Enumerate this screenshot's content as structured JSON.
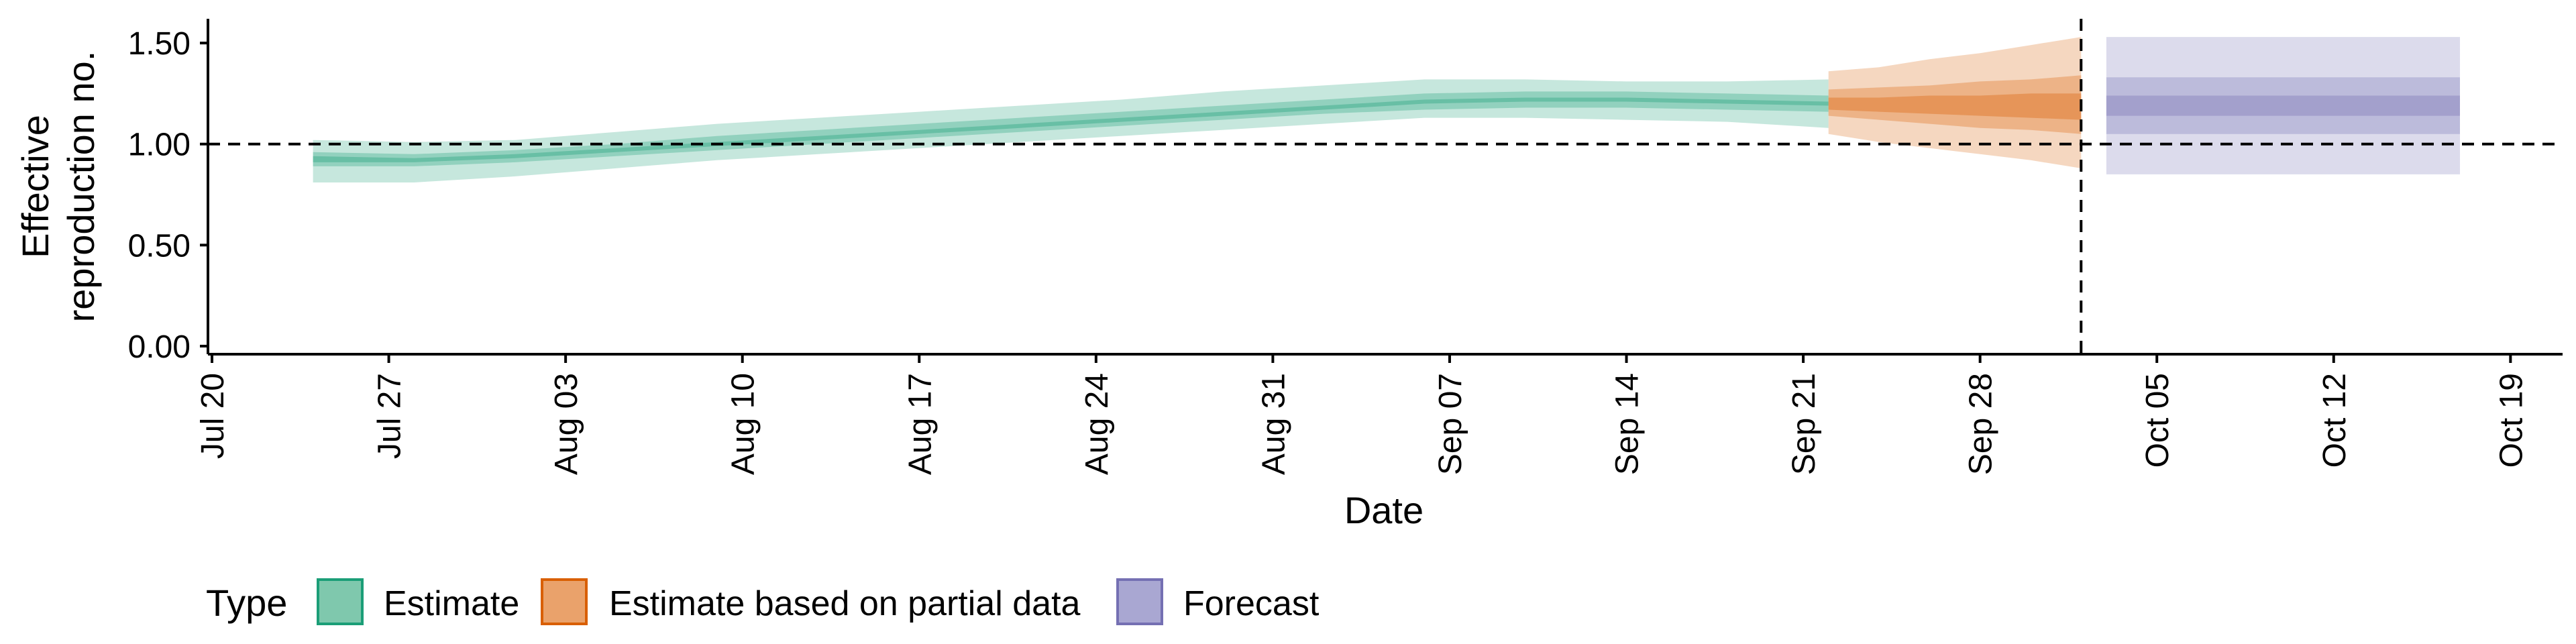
{
  "chart_data": {
    "type": "area",
    "xlabel": "Date",
    "ylabel_lines": [
      "Effective",
      "reproduction no."
    ],
    "x_range": [
      "2020-07-20",
      "2020-10-20"
    ],
    "ylim": [
      -0.04,
      1.62
    ],
    "yticks": [
      0.0,
      0.5,
      1.0,
      1.5
    ],
    "ytick_labels": [
      "0.00",
      "0.50",
      "1.00",
      "1.50"
    ],
    "xticks": [
      "2020-07-20",
      "2020-07-27",
      "2020-08-03",
      "2020-08-10",
      "2020-08-17",
      "2020-08-24",
      "2020-08-31",
      "2020-09-07",
      "2020-09-14",
      "2020-09-21",
      "2020-09-28",
      "2020-10-05",
      "2020-10-12",
      "2020-10-19"
    ],
    "xtick_labels": [
      "Jul 20",
      "Jul 27",
      "Aug 03",
      "Aug 10",
      "Aug 17",
      "Aug 24",
      "Aug 31",
      "Sep 07",
      "Sep 14",
      "Sep 21",
      "Sep 28",
      "Oct 05",
      "Oct 12",
      "Oct 19"
    ],
    "reference_line_y": 1.0,
    "forecast_start_line_x": "2020-10-02",
    "grid": false,
    "legend": {
      "position": "bottom-left",
      "title": "Type",
      "entries": [
        {
          "label": "Estimate",
          "fill": "#7fc8ad",
          "stroke": "#1b9e77"
        },
        {
          "label": "Estimate based on partial data",
          "fill": "#eaa26b",
          "stroke": "#d95f02"
        },
        {
          "label": "Forecast",
          "fill": "#a9a7d2",
          "stroke": "#7570b3"
        }
      ]
    },
    "series": [
      {
        "name": "Estimate",
        "color": "#1b9e77",
        "x": [
          "2020-07-24",
          "2020-07-28",
          "2020-08-01",
          "2020-08-05",
          "2020-08-09",
          "2020-08-13",
          "2020-08-17",
          "2020-08-21",
          "2020-08-25",
          "2020-08-29",
          "2020-09-02",
          "2020-09-06",
          "2020-09-10",
          "2020-09-14",
          "2020-09-18",
          "2020-09-22"
        ],
        "median": [
          0.93,
          0.92,
          0.94,
          0.97,
          1.0,
          1.03,
          1.06,
          1.09,
          1.12,
          1.15,
          1.18,
          1.21,
          1.22,
          1.22,
          1.21,
          1.2
        ],
        "lower_90": [
          0.81,
          0.81,
          0.84,
          0.88,
          0.92,
          0.95,
          0.98,
          1.01,
          1.04,
          1.07,
          1.1,
          1.13,
          1.13,
          1.12,
          1.11,
          1.08
        ],
        "upper_90": [
          1.02,
          1.01,
          1.02,
          1.06,
          1.1,
          1.13,
          1.16,
          1.19,
          1.22,
          1.26,
          1.29,
          1.32,
          1.32,
          1.31,
          1.31,
          1.32
        ],
        "lower_50": [
          0.89,
          0.89,
          0.91,
          0.94,
          0.97,
          1.0,
          1.03,
          1.06,
          1.09,
          1.12,
          1.15,
          1.17,
          1.18,
          1.18,
          1.17,
          1.16
        ],
        "upper_50": [
          0.96,
          0.95,
          0.97,
          1.0,
          1.04,
          1.07,
          1.1,
          1.13,
          1.16,
          1.19,
          1.22,
          1.25,
          1.26,
          1.26,
          1.25,
          1.24
        ],
        "lower_20": [
          0.91,
          0.91,
          0.93,
          0.96,
          0.99,
          1.02,
          1.05,
          1.08,
          1.11,
          1.14,
          1.17,
          1.2,
          1.21,
          1.21,
          1.2,
          1.19
        ],
        "upper_20": [
          0.94,
          0.93,
          0.95,
          0.98,
          1.01,
          1.04,
          1.07,
          1.1,
          1.13,
          1.16,
          1.19,
          1.22,
          1.23,
          1.23,
          1.22,
          1.21
        ]
      },
      {
        "name": "Estimate based on partial data",
        "color": "#d95f02",
        "x": [
          "2020-09-22",
          "2020-09-24",
          "2020-09-26",
          "2020-09-28",
          "2020-09-30",
          "2020-10-02"
        ],
        "median": [
          1.2,
          1.2,
          1.19,
          1.19,
          1.19,
          1.19
        ],
        "lower_90": [
          1.05,
          1.01,
          0.98,
          0.95,
          0.92,
          0.88
        ],
        "upper_90": [
          1.36,
          1.38,
          1.42,
          1.45,
          1.49,
          1.53
        ],
        "lower_50": [
          1.14,
          1.12,
          1.1,
          1.08,
          1.07,
          1.05
        ],
        "upper_50": [
          1.27,
          1.28,
          1.29,
          1.31,
          1.32,
          1.34
        ],
        "lower_20": [
          1.17,
          1.16,
          1.15,
          1.14,
          1.13,
          1.12
        ],
        "upper_20": [
          1.23,
          1.23,
          1.24,
          1.24,
          1.25,
          1.25
        ]
      },
      {
        "name": "Forecast",
        "color": "#7570b3",
        "x": [
          "2020-10-03",
          "2020-10-17"
        ],
        "median": [
          1.19,
          1.19
        ],
        "lower_90": [
          0.85,
          0.85
        ],
        "upper_90": [
          1.53,
          1.53
        ],
        "lower_50": [
          1.05,
          1.05
        ],
        "upper_50": [
          1.33,
          1.33
        ],
        "lower_20": [
          1.14,
          1.14
        ],
        "upper_20": [
          1.24,
          1.24
        ]
      }
    ]
  }
}
